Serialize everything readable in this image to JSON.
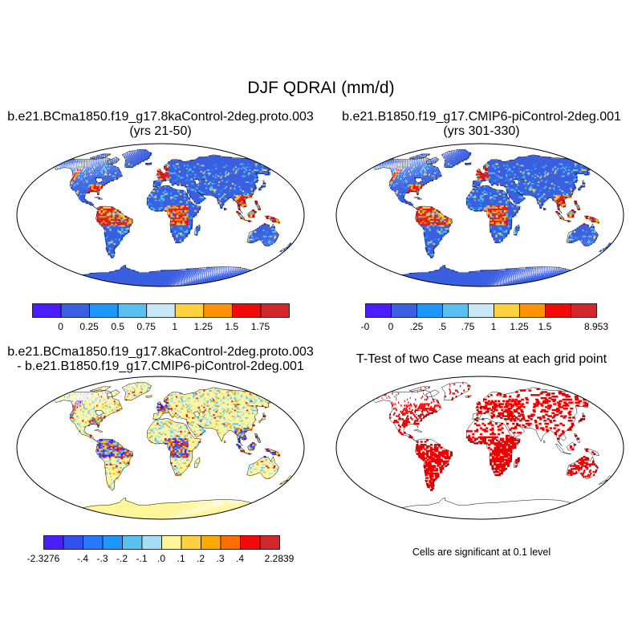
{
  "title": "DJF QDRAI (mm/d)",
  "panels": {
    "p1": {
      "line1": "b.e21.BCma1850.f19_g17.8kaControl-2deg.proto.003",
      "line2": "(yrs 21-50)"
    },
    "p2": {
      "line1": "b.e21.B1850.f19_g17.CMIP6-piControl-2deg.001",
      "line2": "(yrs 301-330)"
    },
    "p3": {
      "line1": "b.e21.BCma1850.f19_g17.8kaControl-2deg.proto.003",
      "line2": "- b.e21.B1850.f19_g17.CMIP6-piControl-2deg.001"
    },
    "p4": {
      "line1": "T-Test of two Case means at each grid point",
      "note": "Cells are significant at 0.1 level"
    }
  },
  "colorbars": {
    "cb1": {
      "colors": [
        "#4a1eff",
        "#3a5fe0",
        "#1e96ff",
        "#5ac0f0",
        "#c8e8f8",
        "#fed23e",
        "#ff9400",
        "#f00a0a",
        "#d2282c"
      ],
      "labels": [
        "0",
        "0.25",
        "0.5",
        "0.75",
        "1",
        "1.25",
        "1.5",
        "1.75"
      ]
    },
    "cb2": {
      "colors": [
        "#4a1eff",
        "#3a5fe0",
        "#1e96ff",
        "#5ac0f0",
        "#c8e8f8",
        "#fed23e",
        "#ff9400",
        "#f00a0a",
        "#d2282c"
      ],
      "labels": [
        "-0",
        "0",
        ".25",
        ".5",
        ".75",
        "1",
        "1.25",
        "1.5",
        "",
        "8.953"
      ]
    },
    "cb3": {
      "colors": [
        "#4a1eff",
        "#3050f0",
        "#2878ff",
        "#1e96ff",
        "#5ac0f0",
        "#a8dcf0",
        "#fff59a",
        "#fed23e",
        "#ffa800",
        "#ff6e00",
        "#f00a0a",
        "#d2282c"
      ],
      "labels": [
        "-2.3276",
        "",
        "-.4",
        "-.3",
        "-.2",
        "-.1",
        ".0",
        ".1",
        ".2",
        ".3",
        ".4",
        "",
        "2.2839"
      ]
    }
  },
  "map_colors": {
    "ocean": "#ffffff",
    "land_base_abs": "#3a5fe0",
    "land_base_diff": "#fff59a",
    "sig": "#ee0000",
    "coast": "#000000"
  }
}
